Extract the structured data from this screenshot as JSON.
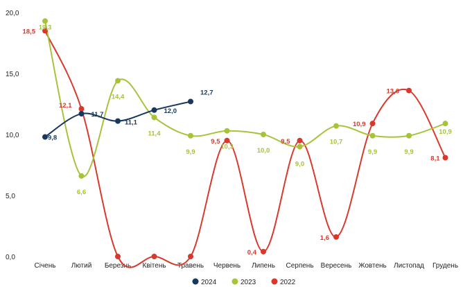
{
  "chart_data": {
    "type": "line",
    "categories": [
      "Січень",
      "Лютий",
      "Березнь",
      "Квітень",
      "Травень",
      "Червень",
      "Липень",
      "Серпень",
      "Вересень",
      "Жовтень",
      "Листопад",
      "Грудень"
    ],
    "y_ticks": [
      "0,0",
      "5,0",
      "10,0",
      "15,0",
      "20,0"
    ],
    "ylim": [
      0,
      20
    ],
    "grid": false,
    "legend_position": "bottom",
    "series": [
      {
        "name": "2024",
        "color": "#17375e",
        "values": [
          9.8,
          11.7,
          11.1,
          12.0,
          12.7,
          null,
          null,
          null,
          null,
          null,
          null,
          null
        ],
        "labels": [
          "9,8",
          "11,7",
          "11,1",
          "12,0",
          "12,7",
          null,
          null,
          null,
          null,
          null,
          null,
          null
        ]
      },
      {
        "name": "2023",
        "color": "#a6c33a",
        "values": [
          19.3,
          6.6,
          14.4,
          11.4,
          9.9,
          10.3,
          10.0,
          9.0,
          10.7,
          9.9,
          9.9,
          10.9
        ],
        "labels": [
          "19,3",
          "6,6",
          "14,4",
          "11,4",
          "9,9",
          "10,3",
          "10,0",
          "9,0",
          "10,7",
          "9,9",
          "9,9",
          "10,9"
        ]
      },
      {
        "name": "2022",
        "color": "#d9392c",
        "values": [
          18.5,
          12.1,
          0,
          0,
          0,
          9.5,
          0.4,
          9.5,
          1.6,
          10.9,
          13.6,
          8.1
        ],
        "labels": [
          "18,5",
          "12,1",
          null,
          null,
          null,
          "9,5",
          "0,4",
          "9,5",
          "1,6",
          "10,9",
          "13,6",
          "8,1"
        ]
      }
    ]
  }
}
